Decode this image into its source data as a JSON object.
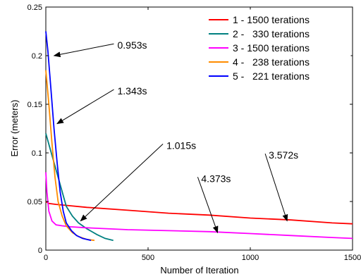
{
  "chart_data": {
    "type": "line",
    "title": "",
    "xlabel": "Number of Iteration",
    "ylabel": "Error (meters)",
    "xlim": [
      0,
      1500
    ],
    "ylim": [
      0,
      0.25
    ],
    "xticks": [
      0,
      500,
      1000,
      1500
    ],
    "yticks": [
      0,
      0.05,
      0.1,
      0.15,
      0.2,
      0.25
    ],
    "xtick_labels": [
      "0",
      "500",
      "1000",
      "1500"
    ],
    "ytick_labels": [
      "0",
      "0.05",
      "0.1",
      "0.15",
      "0.2",
      "0.25"
    ],
    "grid": false,
    "legend_position": "top-right",
    "series": [
      {
        "name": "1 - 1500 terations",
        "color": "#ff0000",
        "x": [
          0,
          15,
          50,
          100,
          200,
          400,
          600,
          800,
          1000,
          1200,
          1400,
          1500
        ],
        "y": [
          0.05,
          0.048,
          0.047,
          0.046,
          0.044,
          0.041,
          0.038,
          0.036,
          0.033,
          0.031,
          0.028,
          0.027
        ]
      },
      {
        "name": "2 -   330 terations",
        "color": "#008080",
        "x": [
          0,
          20,
          40,
          60,
          80,
          100,
          130,
          160,
          200,
          250,
          290,
          330
        ],
        "y": [
          0.12,
          0.105,
          0.09,
          0.075,
          0.06,
          0.045,
          0.035,
          0.028,
          0.022,
          0.016,
          0.012,
          0.01
        ]
      },
      {
        "name": "3 - 1500 terations",
        "color": "#ff00ff",
        "x": [
          0,
          5,
          15,
          30,
          50,
          80,
          120,
          200,
          400,
          600,
          800,
          1000,
          1200,
          1400,
          1500
        ],
        "y": [
          0.08,
          0.06,
          0.04,
          0.03,
          0.026,
          0.025,
          0.024,
          0.023,
          0.021,
          0.02,
          0.019,
          0.017,
          0.015,
          0.013,
          0.012
        ]
      },
      {
        "name": "4 -   238 terations",
        "color": "#ff8c00",
        "x": [
          0,
          15,
          30,
          45,
          60,
          80,
          100,
          130,
          160,
          200,
          238
        ],
        "y": [
          0.185,
          0.15,
          0.11,
          0.075,
          0.05,
          0.035,
          0.025,
          0.018,
          0.014,
          0.011,
          0.01
        ]
      },
      {
        "name": "5 -   221 terations",
        "color": "#0000ff",
        "x": [
          0,
          10,
          25,
          40,
          55,
          70,
          85,
          100,
          125,
          150,
          180,
          221
        ],
        "y": [
          0.225,
          0.205,
          0.165,
          0.125,
          0.09,
          0.06,
          0.04,
          0.028,
          0.02,
          0.015,
          0.012,
          0.01
        ]
      }
    ],
    "annotations": [
      {
        "text": "0.953s",
        "text_x": 350,
        "text_y": 0.21,
        "arrow_to_x": 40,
        "arrow_to_y": 0.2
      },
      {
        "text": "1.343s",
        "text_x": 350,
        "text_y": 0.163,
        "arrow_to_x": 55,
        "arrow_to_y": 0.13
      },
      {
        "text": "1.015s",
        "text_x": 590,
        "text_y": 0.107,
        "arrow_to_x": 170,
        "arrow_to_y": 0.03
      },
      {
        "text": "4.373s",
        "text_x": 760,
        "text_y": 0.073,
        "arrow_to_x": 840,
        "arrow_to_y": 0.018
      },
      {
        "text": "3.572s",
        "text_x": 1090,
        "text_y": 0.097,
        "arrow_to_x": 1180,
        "arrow_to_y": 0.03
      }
    ]
  }
}
